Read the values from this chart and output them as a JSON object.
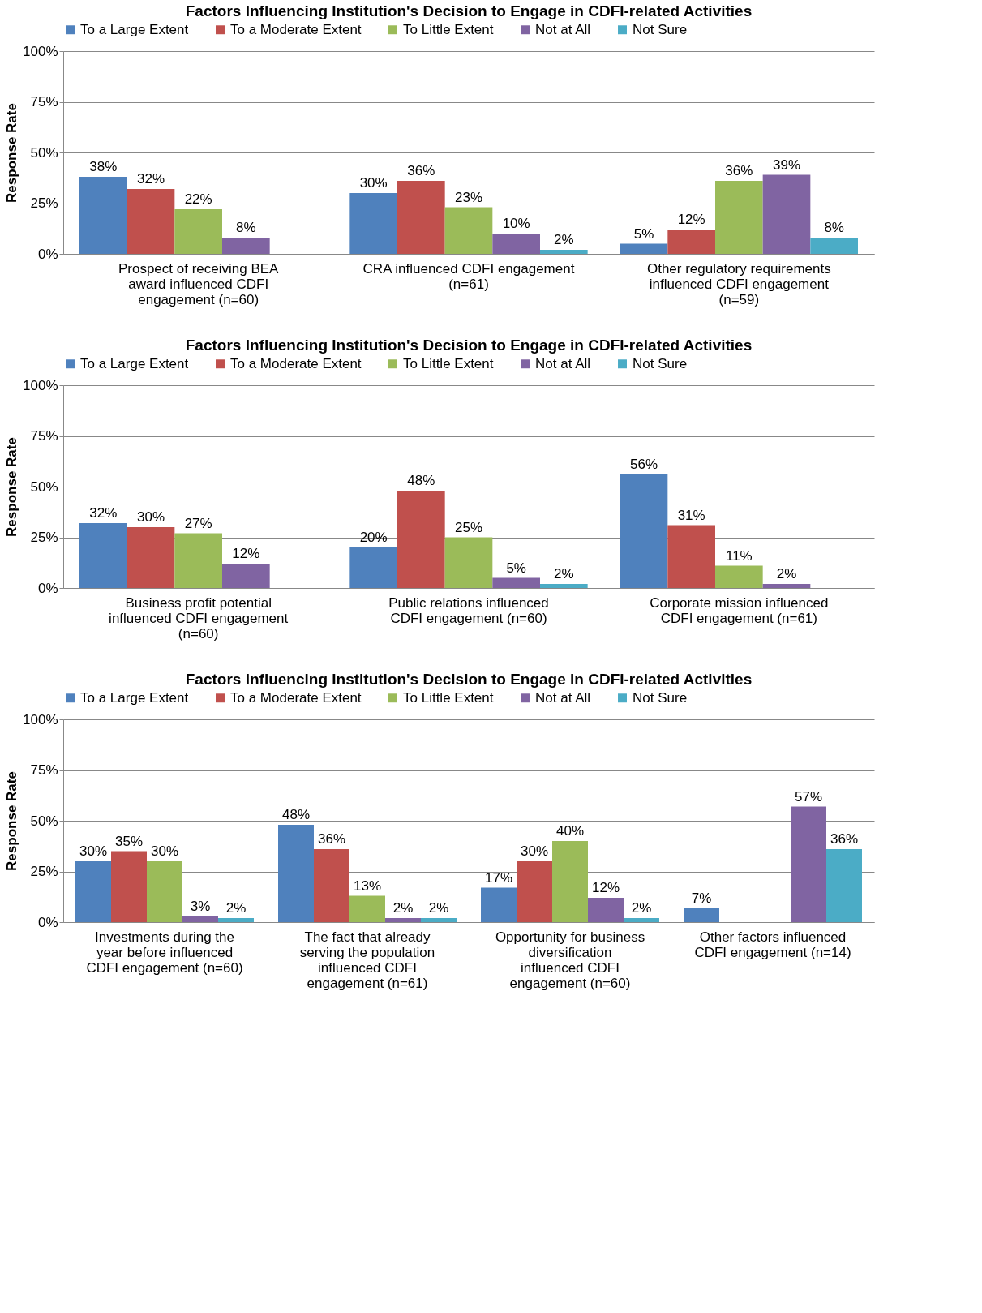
{
  "chart_data": [
    {
      "type": "bar",
      "title": "Factors Influencing Institution's Decision to Engage in CDFI-related Activities",
      "ylabel": "Response Rate",
      "legend": "top",
      "grid": "y",
      "ylim": [
        0,
        100
      ],
      "yticks": [
        {
          "value": 0,
          "label": "0%"
        },
        {
          "value": 25,
          "label": "25%"
        },
        {
          "value": 50,
          "label": "50%"
        },
        {
          "value": 75,
          "label": "75%"
        },
        {
          "value": 100,
          "label": "100%"
        }
      ],
      "categories": [
        "Prospect of receiving BEA award influenced CDFI engagement (n=60)",
        "CRA influenced CDFI engagement (n=61)",
        "Other regulatory requirements influenced CDFI engagement (n=59)"
      ],
      "series": [
        {
          "name": "To a Large Extent",
          "color": "#4f81bd",
          "values": [
            38,
            30,
            5
          ],
          "value_labels": [
            "38%",
            "30%",
            "5%"
          ]
        },
        {
          "name": "To a Moderate Extent",
          "color": "#c0504d",
          "values": [
            32,
            36,
            12
          ],
          "value_labels": [
            "32%",
            "36%",
            "12%"
          ]
        },
        {
          "name": "To Little Extent",
          "color": "#9bbb59",
          "values": [
            22,
            23,
            36
          ],
          "value_labels": [
            "22%",
            "23%",
            "36%"
          ]
        },
        {
          "name": "Not at All",
          "color": "#8064a2",
          "values": [
            8,
            10,
            39
          ],
          "value_labels": [
            "8%",
            "10%",
            "39%"
          ]
        },
        {
          "name": "Not Sure",
          "color": "#4bacc6",
          "values": [
            null,
            2,
            8
          ],
          "value_labels": [
            null,
            "2%",
            "8%"
          ]
        }
      ]
    },
    {
      "type": "bar",
      "title": "Factors Influencing Institution's Decision to Engage in CDFI-related Activities",
      "ylabel": "Response Rate",
      "legend": "top",
      "grid": "y",
      "ylim": [
        0,
        100
      ],
      "yticks": [
        {
          "value": 0,
          "label": "0%"
        },
        {
          "value": 25,
          "label": "25%"
        },
        {
          "value": 50,
          "label": "50%"
        },
        {
          "value": 75,
          "label": "75%"
        },
        {
          "value": 100,
          "label": "100%"
        }
      ],
      "categories": [
        "Business profit potential influenced CDFI engagement (n=60)",
        "Public relations influenced CDFI engagement (n=60)",
        "Corporate mission influenced CDFI engagement (n=61)"
      ],
      "series": [
        {
          "name": "To a Large Extent",
          "color": "#4f81bd",
          "values": [
            32,
            20,
            56
          ],
          "value_labels": [
            "32%",
            "20%",
            "56%"
          ]
        },
        {
          "name": "To a Moderate Extent",
          "color": "#c0504d",
          "values": [
            30,
            48,
            31
          ],
          "value_labels": [
            "30%",
            "48%",
            "31%"
          ]
        },
        {
          "name": "To Little Extent",
          "color": "#9bbb59",
          "values": [
            27,
            25,
            11
          ],
          "value_labels": [
            "27%",
            "25%",
            "11%"
          ]
        },
        {
          "name": "Not at All",
          "color": "#8064a2",
          "values": [
            12,
            5,
            2
          ],
          "value_labels": [
            "12%",
            "5%",
            "2%"
          ]
        },
        {
          "name": "Not Sure",
          "color": "#4bacc6",
          "values": [
            null,
            2,
            null
          ],
          "value_labels": [
            null,
            "2%",
            null
          ]
        }
      ]
    },
    {
      "type": "bar",
      "title": "Factors Influencing Institution's Decision to Engage in CDFI-related Activities",
      "ylabel": "Response Rate",
      "legend": "top",
      "grid": "y",
      "ylim": [
        0,
        100
      ],
      "yticks": [
        {
          "value": 0,
          "label": "0%"
        },
        {
          "value": 25,
          "label": "25%"
        },
        {
          "value": 50,
          "label": "50%"
        },
        {
          "value": 75,
          "label": "75%"
        },
        {
          "value": 100,
          "label": "100%"
        }
      ],
      "categories": [
        "Investments during the year before influenced CDFI engagement (n=60)",
        "The fact that already serving the population influenced CDFI engagement (n=61)",
        "Opportunity for business diversification influenced CDFI engagement (n=60)",
        "Other factors influenced CDFI engagement (n=14)"
      ],
      "series": [
        {
          "name": "To a Large Extent",
          "color": "#4f81bd",
          "values": [
            30,
            48,
            17,
            7
          ],
          "value_labels": [
            "30%",
            "48%",
            "17%",
            "7%"
          ]
        },
        {
          "name": "To a Moderate Extent",
          "color": "#c0504d",
          "values": [
            35,
            36,
            30,
            null
          ],
          "value_labels": [
            "35%",
            "36%",
            "30%",
            null
          ]
        },
        {
          "name": "To Little Extent",
          "color": "#9bbb59",
          "values": [
            30,
            13,
            40,
            null
          ],
          "value_labels": [
            "30%",
            "13%",
            "40%",
            null
          ]
        },
        {
          "name": "Not at All",
          "color": "#8064a2",
          "values": [
            3,
            2,
            12,
            57
          ],
          "value_labels": [
            "3%",
            "2%",
            "12%",
            "57%"
          ]
        },
        {
          "name": "Not Sure",
          "color": "#4bacc6",
          "values": [
            2,
            2,
            2,
            36
          ],
          "value_labels": [
            "2%",
            "2%",
            "2%",
            "36%"
          ]
        }
      ]
    }
  ]
}
